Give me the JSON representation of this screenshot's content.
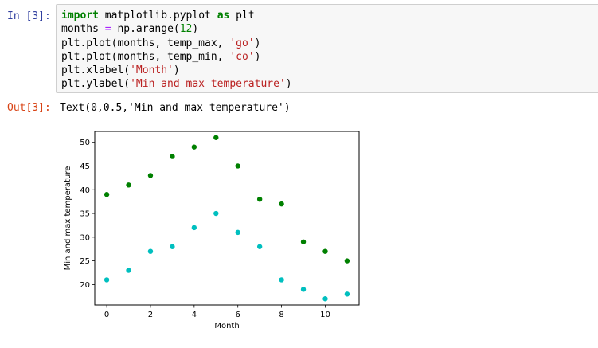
{
  "input_cell": {
    "prompt": "In [3]:",
    "code_lines": [
      [
        {
          "t": "kw",
          "v": "import"
        },
        {
          "t": "txt",
          "v": " matplotlib.pyplot "
        },
        {
          "t": "kw",
          "v": "as"
        },
        {
          "t": "txt",
          "v": " plt"
        }
      ],
      [
        {
          "t": "txt",
          "v": "months "
        },
        {
          "t": "op",
          "v": "="
        },
        {
          "t": "txt",
          "v": " np.arange("
        },
        {
          "t": "num",
          "v": "12"
        },
        {
          "t": "txt",
          "v": ")"
        }
      ],
      [
        {
          "t": "txt",
          "v": "plt.plot(months, temp_max, "
        },
        {
          "t": "str",
          "v": "'go'"
        },
        {
          "t": "txt",
          "v": ")"
        }
      ],
      [
        {
          "t": "txt",
          "v": "plt.plot(months, temp_min, "
        },
        {
          "t": "str",
          "v": "'co'"
        },
        {
          "t": "txt",
          "v": ")"
        }
      ],
      [
        {
          "t": "txt",
          "v": "plt.xlabel("
        },
        {
          "t": "str",
          "v": "'Month'"
        },
        {
          "t": "txt",
          "v": ")"
        }
      ],
      [
        {
          "t": "txt",
          "v": "plt.ylabel("
        },
        {
          "t": "str",
          "v": "'Min and max temperature'"
        },
        {
          "t": "txt",
          "v": ")"
        }
      ]
    ]
  },
  "output_cell": {
    "prompt": "Out[3]:",
    "text": "Text(0,0.5,'Min and max temperature')"
  },
  "colors": {
    "in_prompt": "#303f9f",
    "out_prompt": "#d84315",
    "temp_max_marker": "#008000",
    "temp_min_marker": "#00bfbf"
  },
  "chart_data": {
    "type": "scatter",
    "title": "",
    "xlabel": "Month",
    "ylabel": "Min and max temperature",
    "x": [
      0,
      1,
      2,
      3,
      4,
      5,
      6,
      7,
      8,
      9,
      10,
      11
    ],
    "series": [
      {
        "color": "#008000",
        "values": [
          39,
          41,
          43,
          47,
          49,
          51,
          45,
          38,
          37,
          29,
          27,
          25
        ]
      },
      {
        "color": "#00bfbf",
        "values": [
          21,
          23,
          27,
          28,
          32,
          35,
          31,
          28,
          21,
          19,
          17,
          18
        ]
      }
    ],
    "xticks": [
      0,
      2,
      4,
      6,
      8,
      10
    ],
    "yticks": [
      20,
      25,
      30,
      35,
      40,
      45,
      50
    ],
    "xlim": [
      -0.55,
      11.55
    ],
    "ylim": [
      15.7,
      52.3
    ],
    "grid": false,
    "legend": "none"
  }
}
